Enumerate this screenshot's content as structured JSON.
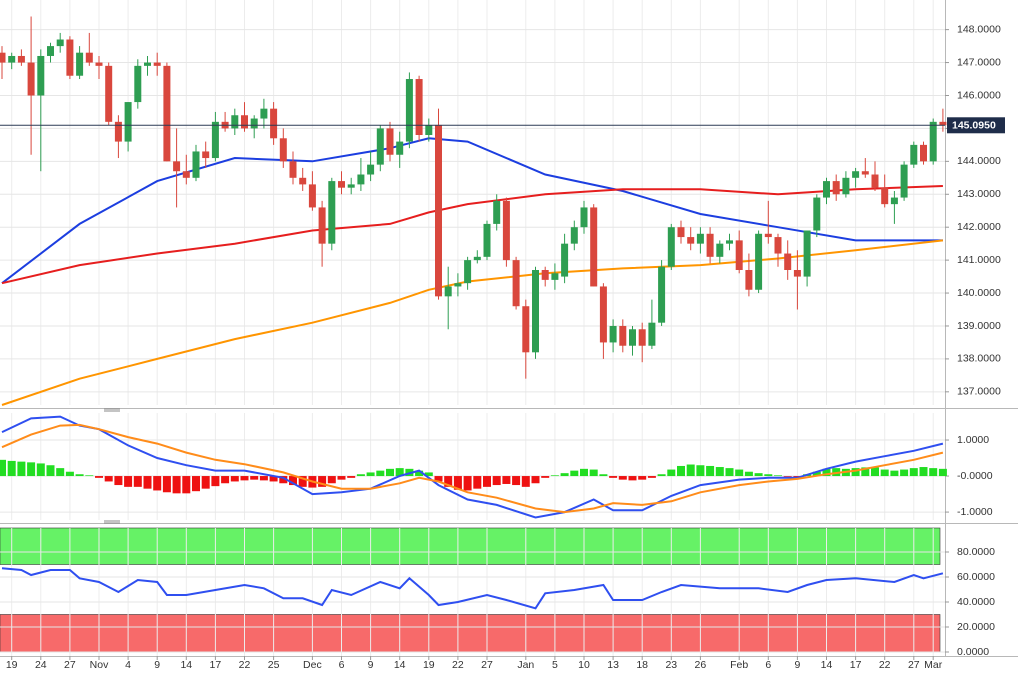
{
  "chart_data": [
    {
      "type": "candlestick",
      "categories": [
        null,
        "19",
        null,
        null,
        "24",
        null,
        null,
        "27",
        null,
        null,
        "Nov",
        null,
        null,
        "4",
        null,
        null,
        "9",
        null,
        null,
        "14",
        null,
        null,
        "17",
        null,
        null,
        "22",
        null,
        null,
        "25",
        null,
        null,
        null,
        "Dec",
        null,
        null,
        "6",
        null,
        null,
        "9",
        null,
        null,
        "14",
        null,
        null,
        "19",
        null,
        null,
        "22",
        null,
        null,
        "27",
        null,
        null,
        null,
        "Jan",
        null,
        null,
        "5",
        null,
        null,
        "10",
        null,
        null,
        "13",
        null,
        null,
        "18",
        null,
        null,
        "23",
        null,
        null,
        "26",
        null,
        null,
        null,
        "Feb",
        null,
        null,
        "6",
        null,
        null,
        "9",
        null,
        null,
        "14",
        null,
        null,
        "17",
        null,
        null,
        "22",
        null,
        null,
        "27",
        null,
        "Mar",
        null
      ],
      "ohlc": [
        [
          147.3,
          147.5,
          146.5,
          147.0
        ],
        [
          147.0,
          147.3,
          146.8,
          147.2
        ],
        [
          147.2,
          147.4,
          146.9,
          147.0
        ],
        [
          147.0,
          148.4,
          144.2,
          146.0
        ],
        [
          146.0,
          147.4,
          143.7,
          147.2
        ],
        [
          147.2,
          147.6,
          147.0,
          147.5
        ],
        [
          147.5,
          147.9,
          147.3,
          147.7
        ],
        [
          147.7,
          147.8,
          146.5,
          146.6
        ],
        [
          146.6,
          147.5,
          146.5,
          147.3
        ],
        [
          147.3,
          147.9,
          146.9,
          147.0
        ],
        [
          147.0,
          147.2,
          146.5,
          146.9
        ],
        [
          146.9,
          147.0,
          145.1,
          145.2
        ],
        [
          145.2,
          145.4,
          144.1,
          144.6
        ],
        [
          144.6,
          145.8,
          144.3,
          145.8
        ],
        [
          145.8,
          147.1,
          145.6,
          146.9
        ],
        [
          146.9,
          147.2,
          146.6,
          147.0
        ],
        [
          147.0,
          147.3,
          146.6,
          146.9
        ],
        [
          146.9,
          147.0,
          144.0,
          144.0
        ],
        [
          144.0,
          145.0,
          142.6,
          143.7
        ],
        [
          143.7,
          144.2,
          143.3,
          143.5
        ],
        [
          143.5,
          144.5,
          143.4,
          144.3
        ],
        [
          144.3,
          144.6,
          143.8,
          144.1
        ],
        [
          144.1,
          145.5,
          144.0,
          145.2
        ],
        [
          145.2,
          145.5,
          144.9,
          145.0
        ],
        [
          145.0,
          145.6,
          144.8,
          145.4
        ],
        [
          145.4,
          145.8,
          144.9,
          145.0
        ],
        [
          145.0,
          145.4,
          144.7,
          145.3
        ],
        [
          145.3,
          145.9,
          145.0,
          145.6
        ],
        [
          145.6,
          145.8,
          144.5,
          144.7
        ],
        [
          144.7,
          145.0,
          143.8,
          144.0
        ],
        [
          144.0,
          144.3,
          143.3,
          143.5
        ],
        [
          143.5,
          143.8,
          143.1,
          143.3
        ],
        [
          143.3,
          143.7,
          142.5,
          142.6
        ],
        [
          142.6,
          142.8,
          140.8,
          141.5
        ],
        [
          141.5,
          143.5,
          141.3,
          143.4
        ],
        [
          143.4,
          143.7,
          143.0,
          143.2
        ],
        [
          143.2,
          143.5,
          143.0,
          143.3
        ],
        [
          143.3,
          144.1,
          143.1,
          143.6
        ],
        [
          143.6,
          144.3,
          143.4,
          143.9
        ],
        [
          143.9,
          145.1,
          143.7,
          145.0
        ],
        [
          145.0,
          145.2,
          144.0,
          144.2
        ],
        [
          144.2,
          144.9,
          143.8,
          144.6
        ],
        [
          144.6,
          146.7,
          144.4,
          146.5
        ],
        [
          146.5,
          146.6,
          144.6,
          144.8
        ],
        [
          144.8,
          145.3,
          144.6,
          145.1
        ],
        [
          145.1,
          145.6,
          139.8,
          139.9
        ],
        [
          139.9,
          140.8,
          138.9,
          140.2
        ],
        [
          140.2,
          140.6,
          139.9,
          140.3
        ],
        [
          140.3,
          141.1,
          140.1,
          141.0
        ],
        [
          141.0,
          141.3,
          140.9,
          141.1
        ],
        [
          141.1,
          142.2,
          141.0,
          142.1
        ],
        [
          142.1,
          143.0,
          141.9,
          142.8
        ],
        [
          142.8,
          142.9,
          140.8,
          141.0
        ],
        [
          141.0,
          141.1,
          139.5,
          139.6
        ],
        [
          139.6,
          139.8,
          137.4,
          138.2
        ],
        [
          138.2,
          140.8,
          138.0,
          140.7
        ],
        [
          140.7,
          140.8,
          140.2,
          140.4
        ],
        [
          140.4,
          140.9,
          140.1,
          140.6
        ],
        [
          140.5,
          141.8,
          140.3,
          141.5
        ],
        [
          141.5,
          142.2,
          141.3,
          142.0
        ],
        [
          142.0,
          142.8,
          141.8,
          142.6
        ],
        [
          142.6,
          142.7,
          140.2,
          140.2
        ],
        [
          140.2,
          140.3,
          138.0,
          138.5
        ],
        [
          138.5,
          139.2,
          138.2,
          139.0
        ],
        [
          139.0,
          139.2,
          138.2,
          138.4
        ],
        [
          138.4,
          139.0,
          138.1,
          138.9
        ],
        [
          138.9,
          139.1,
          137.9,
          138.4
        ],
        [
          138.4,
          139.8,
          138.3,
          139.1
        ],
        [
          139.1,
          141.0,
          139.0,
          140.8
        ],
        [
          140.8,
          142.1,
          140.7,
          142.0
        ],
        [
          142.0,
          142.2,
          141.5,
          141.7
        ],
        [
          141.7,
          142.0,
          141.3,
          141.5
        ],
        [
          141.5,
          142.0,
          141.2,
          141.8
        ],
        [
          141.8,
          142.0,
          140.9,
          141.1
        ],
        [
          141.1,
          141.6,
          140.9,
          141.5
        ],
        [
          141.5,
          141.8,
          141.3,
          141.6
        ],
        [
          141.6,
          141.9,
          140.6,
          140.7
        ],
        [
          140.7,
          141.2,
          139.9,
          140.1
        ],
        [
          140.1,
          141.9,
          140.0,
          141.8
        ],
        [
          141.8,
          142.8,
          141.5,
          141.7
        ],
        [
          141.7,
          141.8,
          140.8,
          141.2
        ],
        [
          141.2,
          141.6,
          140.4,
          140.7
        ],
        [
          140.7,
          141.3,
          139.5,
          140.5
        ],
        [
          140.5,
          141.9,
          140.2,
          141.9
        ],
        [
          141.9,
          143.0,
          141.7,
          142.9
        ],
        [
          142.9,
          143.5,
          142.7,
          143.4
        ],
        [
          143.4,
          143.6,
          142.8,
          143.0
        ],
        [
          143.0,
          143.7,
          142.9,
          143.5
        ],
        [
          143.5,
          143.8,
          143.2,
          143.7
        ],
        [
          143.7,
          144.1,
          143.5,
          143.6
        ],
        [
          143.6,
          144.0,
          143.1,
          143.2
        ],
        [
          143.2,
          143.6,
          142.6,
          142.7
        ],
        [
          142.7,
          143.1,
          142.1,
          142.9
        ],
        [
          142.9,
          144.0,
          142.8,
          143.9
        ],
        [
          143.9,
          144.6,
          143.8,
          144.5
        ],
        [
          144.5,
          144.6,
          143.9,
          144.0
        ],
        [
          144.0,
          145.3,
          143.9,
          145.2
        ],
        [
          145.2,
          145.6,
          144.9,
          145.095
        ]
      ],
      "up_color": "#2e9e52",
      "down_color": "#d9473d",
      "lines": [
        {
          "color": "#1c3ee0",
          "x": [
            0,
            8,
            16,
            24,
            32,
            40,
            44,
            48,
            56,
            64,
            72,
            80,
            88,
            97
          ],
          "values": [
            140.3,
            142.1,
            143.4,
            144.1,
            144.0,
            144.4,
            144.7,
            144.6,
            143.6,
            143.1,
            142.4,
            142.0,
            141.6,
            141.6
          ]
        },
        {
          "color": "#e61e1e",
          "x": [
            0,
            8,
            16,
            24,
            32,
            40,
            44,
            48,
            56,
            64,
            72,
            80,
            88,
            97
          ],
          "values": [
            140.3,
            140.85,
            141.2,
            141.5,
            141.9,
            142.1,
            142.45,
            142.7,
            143.0,
            143.15,
            143.15,
            143.0,
            143.15,
            143.25
          ]
        },
        {
          "color": "#ff9500",
          "x": [
            0,
            8,
            16,
            24,
            32,
            40,
            44,
            48,
            56,
            64,
            72,
            80,
            88,
            97
          ],
          "values": [
            136.6,
            137.4,
            138.0,
            138.6,
            139.1,
            139.7,
            140.1,
            140.35,
            140.6,
            140.75,
            140.85,
            141.05,
            141.3,
            141.6
          ]
        }
      ],
      "last": {
        "value": 145.095,
        "label": "145.0950"
      },
      "ylim": [
        136.6,
        148.9
      ],
      "yticks": [
        {
          "value": 137,
          "label": "137.0000"
        },
        {
          "value": 138,
          "label": "138.0000"
        },
        {
          "value": 139,
          "label": "139.0000"
        },
        {
          "value": 140,
          "label": "140.0000"
        },
        {
          "value": 141,
          "label": "141.0000"
        },
        {
          "value": 142,
          "label": "142.0000"
        },
        {
          "value": 143,
          "label": "143.0000"
        },
        {
          "value": 144,
          "label": "144.0000"
        },
        {
          "value": 145,
          "label": "145.0000"
        },
        {
          "value": 146,
          "label": "146.0000"
        },
        {
          "value": 147,
          "label": "147.0000"
        },
        {
          "value": 148,
          "label": "148.0000"
        }
      ],
      "grid": true
    },
    {
      "type": "macd",
      "histogram": [
        0.45,
        0.42,
        0.4,
        0.38,
        0.35,
        0.3,
        0.22,
        0.12,
        0.05,
        0.02,
        -0.05,
        -0.15,
        -0.25,
        -0.3,
        -0.3,
        -0.35,
        -0.4,
        -0.45,
        -0.48,
        -0.48,
        -0.42,
        -0.35,
        -0.28,
        -0.2,
        -0.15,
        -0.12,
        -0.1,
        -0.12,
        -0.15,
        -0.2,
        -0.25,
        -0.3,
        -0.32,
        -0.3,
        -0.2,
        -0.1,
        -0.05,
        0.05,
        0.1,
        0.15,
        0.2,
        0.22,
        0.2,
        0.15,
        0.1,
        -0.15,
        -0.3,
        -0.38,
        -0.4,
        -0.35,
        -0.3,
        -0.25,
        -0.22,
        -0.25,
        -0.3,
        -0.2,
        -0.05,
        0.02,
        0.08,
        0.15,
        0.2,
        0.18,
        0.05,
        -0.05,
        -0.1,
        -0.12,
        -0.1,
        -0.05,
        0.05,
        0.18,
        0.28,
        0.32,
        0.3,
        0.28,
        0.25,
        0.22,
        0.18,
        0.12,
        0.08,
        0.05,
        0.02,
        -0.02,
        -0.05,
        0.05,
        0.12,
        0.2,
        0.22,
        0.2,
        0.22,
        0.24,
        0.24,
        0.18,
        0.15,
        0.18,
        0.22,
        0.25,
        0.22,
        0.2
      ],
      "pos_color": "#22dd22",
      "neg_color": "#ee1111",
      "series": [
        {
          "color": "#2f4ff0",
          "x": [
            0,
            3,
            6,
            8,
            10,
            13,
            16,
            19,
            22,
            25,
            29,
            32,
            35,
            38,
            41,
            43,
            45,
            48,
            51,
            55,
            58,
            61,
            63,
            66,
            69,
            72,
            76,
            79,
            82,
            85,
            88,
            91,
            94,
            97
          ],
          "values": [
            1.22,
            1.6,
            1.65,
            1.4,
            1.3,
            0.85,
            0.5,
            0.3,
            0.15,
            0.15,
            -0.05,
            -0.5,
            -0.45,
            -0.35,
            0,
            0.15,
            -0.25,
            -0.65,
            -0.8,
            -1.15,
            -1.0,
            -0.65,
            -0.95,
            -0.95,
            -0.55,
            -0.25,
            -0.1,
            -0.05,
            -0.05,
            0.2,
            0.4,
            0.55,
            0.7,
            0.9
          ]
        },
        {
          "color": "#ff8c1a",
          "x": [
            0,
            3,
            6,
            8,
            10,
            13,
            16,
            19,
            22,
            25,
            29,
            32,
            35,
            38,
            41,
            43,
            45,
            48,
            51,
            55,
            58,
            61,
            63,
            66,
            69,
            72,
            76,
            79,
            82,
            85,
            88,
            91,
            94,
            97
          ],
          "values": [
            0.8,
            1.15,
            1.4,
            1.42,
            1.3,
            1.08,
            0.9,
            0.65,
            0.45,
            0.33,
            0.1,
            -0.15,
            -0.35,
            -0.35,
            -0.2,
            -0.05,
            -0.15,
            -0.45,
            -0.6,
            -0.9,
            -1.0,
            -0.9,
            -0.75,
            -0.8,
            -0.7,
            -0.45,
            -0.25,
            -0.15,
            -0.08,
            0.05,
            0.15,
            0.3,
            0.45,
            0.65
          ]
        }
      ],
      "ylim": [
        -1.22,
        1.75
      ],
      "yticks": [
        {
          "value": 1,
          "label": "1.0000"
        },
        {
          "value": 0,
          "label": "-0.0000"
        },
        {
          "value": -1,
          "label": "-1.0000"
        }
      ],
      "grid": true
    },
    {
      "type": "line",
      "zones": [
        {
          "range": [
            70,
            100
          ],
          "color": "#66f266"
        },
        {
          "range": [
            0,
            30
          ],
          "color": "#f76a6a"
        }
      ],
      "series": [
        {
          "color": "#2f4ff0",
          "x": [
            0,
            2,
            3,
            5,
            7,
            8,
            10,
            12,
            14,
            16,
            17,
            19,
            22,
            25,
            27,
            29,
            31,
            33,
            34,
            36,
            39,
            41,
            42,
            44,
            45,
            47,
            50,
            52,
            55,
            56,
            59,
            62,
            63,
            66,
            68,
            70,
            74,
            78,
            81,
            83,
            85,
            88,
            92,
            94,
            95,
            97
          ],
          "values": [
            67,
            65.6,
            61.6,
            65.6,
            65.6,
            59,
            56,
            48,
            57.6,
            56,
            45.6,
            45.6,
            49.6,
            53.6,
            51,
            43,
            43,
            37.6,
            49.6,
            45.6,
            56,
            51,
            59,
            45.6,
            37.6,
            40,
            45.6,
            41.6,
            35,
            47,
            49.6,
            53.6,
            41.6,
            41.6,
            48,
            53.6,
            51,
            51,
            48,
            53.6,
            57.6,
            59,
            56,
            61.6,
            59,
            63
          ]
        }
      ],
      "ylim": [
        -6.4,
        99.2
      ],
      "yticks": [
        {
          "value": 80,
          "label": "80.0000"
        },
        {
          "value": 60,
          "label": "60.0000"
        },
        {
          "value": 40,
          "label": "40.0000"
        },
        {
          "value": 20,
          "label": "20.0000"
        },
        {
          "value": 0,
          "label": "0.0000"
        }
      ],
      "grid": true
    }
  ]
}
